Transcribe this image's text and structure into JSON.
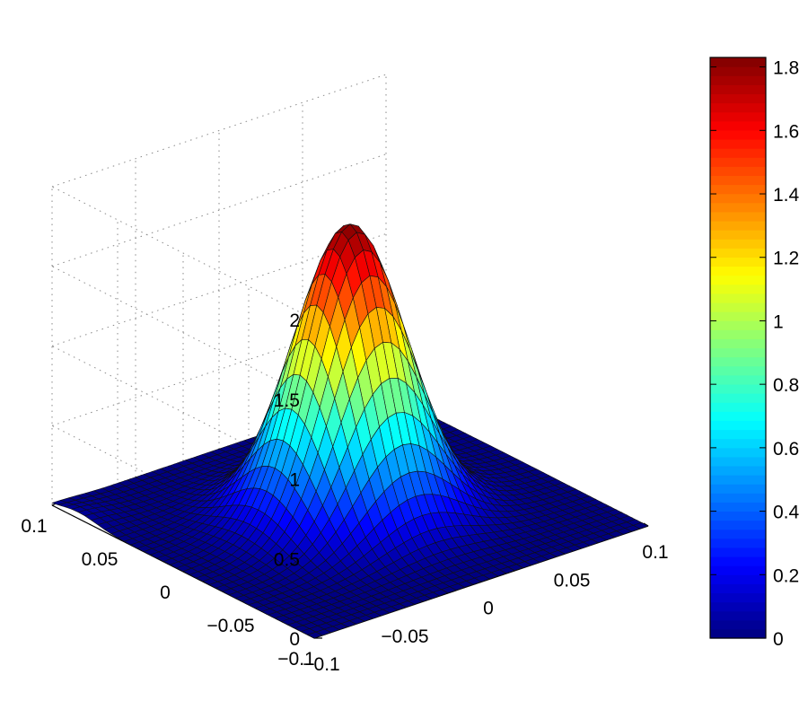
{
  "chart_data": {
    "type": "surface",
    "title": "",
    "xlabel": "",
    "ylabel": "",
    "zlabel": "",
    "xlim": [
      -0.1,
      0.1
    ],
    "ylim": [
      -0.1,
      0.1
    ],
    "zlim": [
      0,
      2
    ],
    "x_ticks": [
      "−0.1",
      "−0.05",
      "0",
      "0.05",
      "0.1"
    ],
    "y_ticks": [
      "−0.1",
      "−0.05",
      "0",
      "0.05",
      "0.1"
    ],
    "z_ticks": [
      "0",
      "0.5",
      "1",
      "1.5",
      "2"
    ],
    "grid": true,
    "colormap": "jet",
    "peak": {
      "x": 0,
      "y": 0,
      "z": 1.83
    },
    "sigma": 0.027,
    "colorbar": {
      "min": 0,
      "max": 1.83,
      "ticks": [
        "0",
        "0.2",
        "0.4",
        "0.6",
        "0.8",
        "1",
        "1.2",
        "1.4",
        "1.6",
        "1.8"
      ]
    }
  }
}
